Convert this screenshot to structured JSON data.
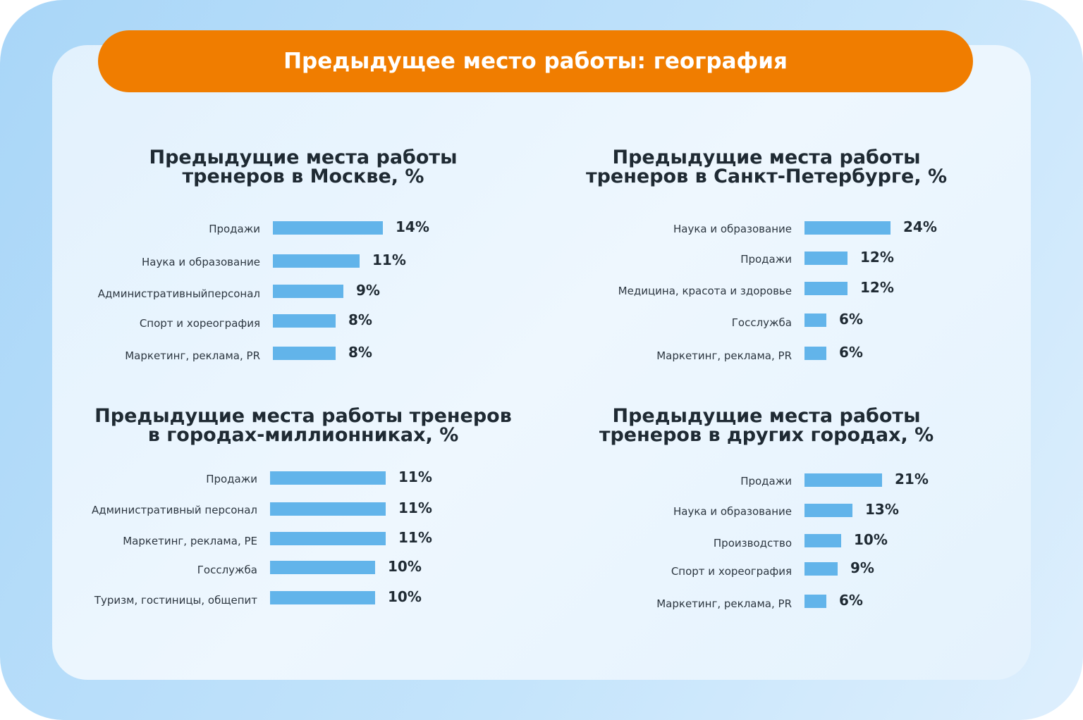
{
  "header": {
    "title": "Предыдущее место работы: география"
  },
  "colors": {
    "banner": "#f07d00",
    "bar": "#62b4ea",
    "text": "#1f2a33"
  },
  "chart_data": [
    {
      "type": "bar",
      "orientation": "horizontal",
      "title_lines": [
        "Предыдущие места работы",
        "тренеров в Москве, %"
      ],
      "categories": [
        "Продажи",
        "Наука и образование",
        "Административныйперсонал",
        "Спорт и хореография",
        "Маркетинг, реклама, PR"
      ],
      "values": [
        14,
        11,
        9,
        8,
        8
      ],
      "labels": [
        "14%",
        "11%",
        "9%",
        "8%",
        "8%"
      ]
    },
    {
      "type": "bar",
      "orientation": "horizontal",
      "title_lines": [
        "Предыдущие места работы",
        "тренеров в Санкт-Петербурге, %"
      ],
      "categories": [
        "Наука и образование",
        "Продажи",
        "Медицина, красота и здоровье",
        "Госслужба",
        "Маркетинг, реклама, PR"
      ],
      "values": [
        24,
        12,
        12,
        6,
        6
      ],
      "labels": [
        "24%",
        "12%",
        "12%",
        "6%",
        "6%"
      ]
    },
    {
      "type": "bar",
      "orientation": "horizontal",
      "title_lines": [
        "Предыдущие места работы тренеров",
        "в городах-миллионниках, %"
      ],
      "categories": [
        "Продажи",
        "Административный персонал",
        "Маркетинг, реклама, PE",
        "Госслужба",
        "Туризм, гостиницы, общепит"
      ],
      "values": [
        11,
        11,
        11,
        10,
        10
      ],
      "labels": [
        "11%",
        "11%",
        "11%",
        "10%",
        "10%"
      ]
    },
    {
      "type": "bar",
      "orientation": "horizontal",
      "title_lines": [
        "Предыдущие места работы",
        "тренеров в других городах, %"
      ],
      "categories": [
        "Продажи",
        "Наука и образование",
        "Производство",
        "Спорт и хореография",
        "Маркетинг, реклама, PR"
      ],
      "values": [
        21,
        13,
        10,
        9,
        6
      ],
      "labels": [
        "21%",
        "13%",
        "10%",
        "9%",
        "6%"
      ]
    }
  ]
}
